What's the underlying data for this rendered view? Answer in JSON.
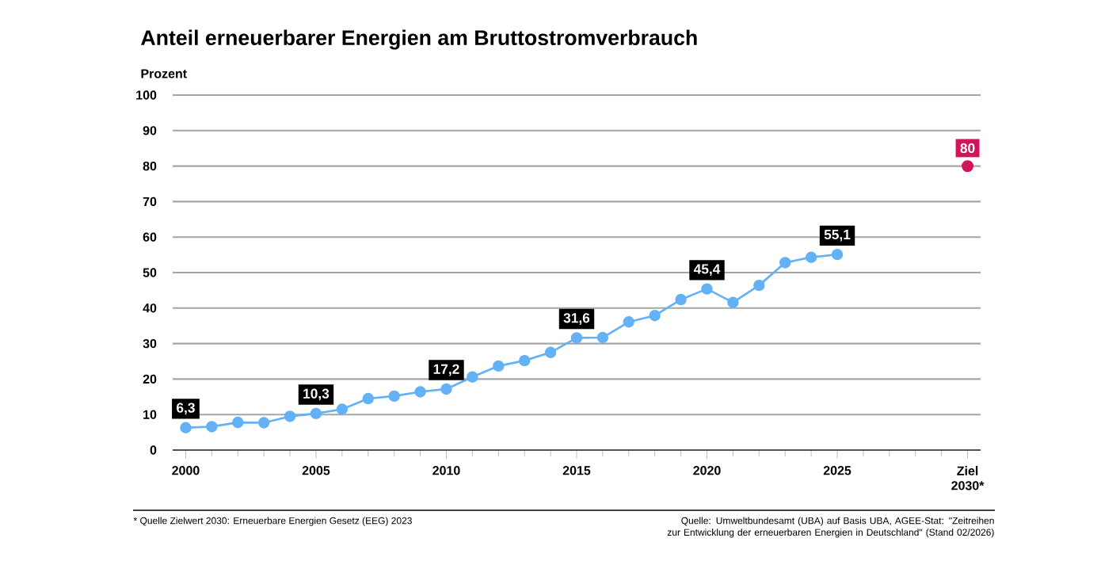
{
  "chart_data": {
    "type": "line",
    "title": "Anteil erneuerbarer Energien am Bruttostromverbrauch",
    "ylabel": "Prozent",
    "annotations": [
      "* Quelle Zielwert 2030: Erneuerbare Energien Gesetz (EEG) 2023",
      "Quelle: Umweltbundesamt (UBA) auf Basis UBA, AGEE-Stat: \"Zeitreihen zur Entwicklung der erneuerbaren Energien in Deutschland\" (Stand 02/2026)"
    ],
    "series": [
      {
        "color": "#63b1f6",
        "x": [
          2000,
          2001,
          2002,
          2003,
          2004,
          2005,
          2006,
          2007,
          2008,
          2009,
          2010,
          2011,
          2012,
          2013,
          2014,
          2015,
          2016,
          2017,
          2018,
          2019,
          2020,
          2021,
          2022,
          2023,
          2024,
          2025
        ],
        "values": [
          6.3,
          6.6,
          7.8,
          7.7,
          9.5,
          10.3,
          11.5,
          14.5,
          15.2,
          16.4,
          17.2,
          20.6,
          23.7,
          25.2,
          27.5,
          31.6,
          31.7,
          36.1,
          37.9,
          42.4,
          45.4,
          41.6,
          46.4,
          52.8,
          54.3,
          55.1
        ],
        "value_labels": [
          "6,3",
          null,
          null,
          null,
          null,
          "10,3",
          null,
          null,
          null,
          null,
          "17,2",
          null,
          null,
          null,
          null,
          "31,6",
          null,
          null,
          null,
          null,
          "45,4",
          null,
          null,
          null,
          null,
          "55,1"
        ]
      },
      {
        "type": "scatter",
        "color": "#d0155a",
        "x": [
          2030
        ],
        "values": [
          80
        ],
        "value_labels": [
          "80"
        ]
      }
    ],
    "xlim": [
      1999.5,
      2030.5
    ],
    "ylim": [
      0,
      100
    ],
    "xticks": [
      2000,
      2005,
      2010,
      2015,
      2020,
      2025,
      {
        "value": 2030,
        "label": "Ziel 2030*"
      }
    ],
    "yticks": [
      0,
      10,
      20,
      30,
      40,
      50,
      60,
      70,
      80,
      90,
      100
    ],
    "grid": "y",
    "marker": "circle"
  }
}
